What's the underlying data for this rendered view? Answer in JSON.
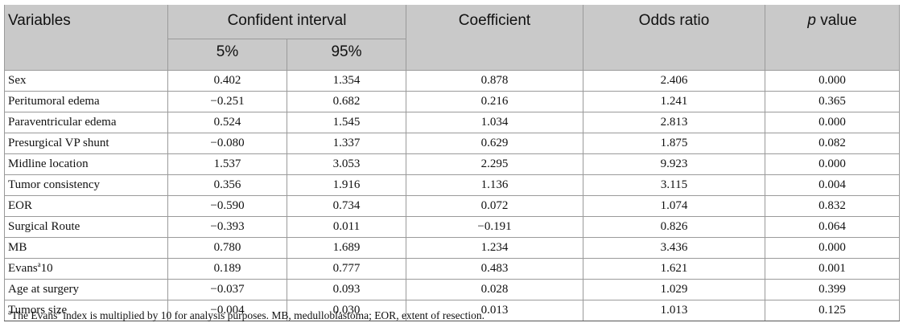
{
  "table": {
    "headers": {
      "variables": "Variables",
      "confident_interval": "Confident interval",
      "ci_low": "5%",
      "ci_high": "95%",
      "coefficient": "Coefficient",
      "odds_ratio": "Odds ratio",
      "p_italic": "p",
      "p_rest": " value"
    },
    "rows": [
      {
        "variable": "Sex",
        "ci_low": "0.402",
        "ci_high": "1.354",
        "coefficient": "0.878",
        "odds_ratio": "2.406",
        "p": "0.000"
      },
      {
        "variable": "Peritumoral edema",
        "ci_low": "−0.251",
        "ci_high": "0.682",
        "coefficient": "0.216",
        "odds_ratio": "1.241",
        "p": "0.365"
      },
      {
        "variable": "Paraventricular edema",
        "ci_low": "0.524",
        "ci_high": "1.545",
        "coefficient": "1.034",
        "odds_ratio": "2.813",
        "p": "0.000"
      },
      {
        "variable": "Presurgical VP shunt",
        "ci_low": "−0.080",
        "ci_high": "1.337",
        "coefficient": "0.629",
        "odds_ratio": "1.875",
        "p": "0.082"
      },
      {
        "variable": "Midline location",
        "ci_low": "1.537",
        "ci_high": "3.053",
        "coefficient": "2.295",
        "odds_ratio": "9.923",
        "p": "0.000"
      },
      {
        "variable": "Tumor consistency",
        "ci_low": "0.356",
        "ci_high": "1.916",
        "coefficient": "1.136",
        "odds_ratio": "3.115",
        "p": "0.004"
      },
      {
        "variable": "EOR",
        "ci_low": "−0.590",
        "ci_high": "0.734",
        "coefficient": "0.072",
        "odds_ratio": "1.074",
        "p": "0.832"
      },
      {
        "variable": "Surgical Route",
        "ci_low": "−0.393",
        "ci_high": "0.011",
        "coefficient": "−0.191",
        "odds_ratio": "0.826",
        "p": "0.064"
      },
      {
        "variable": "MB",
        "ci_low": "0.780",
        "ci_high": "1.689",
        "coefficient": "1.234",
        "odds_ratio": "3.436",
        "p": "0.000"
      },
      {
        "variable": "Evans",
        "variable_sup": "a",
        "variable_suffix": "10",
        "ci_low": "0.189",
        "ci_high": "0.777",
        "coefficient": "0.483",
        "odds_ratio": "1.621",
        "p": "0.001"
      },
      {
        "variable": "Age at surgery",
        "ci_low": "−0.037",
        "ci_high": "0.093",
        "coefficient": "0.028",
        "odds_ratio": "1.029",
        "p": "0.399"
      },
      {
        "variable": "Tumors size",
        "ci_low": "−0.004",
        "ci_high": "0.030",
        "coefficient": "0.013",
        "odds_ratio": "1.013",
        "p": "0.125"
      }
    ]
  },
  "footnote": {
    "marker": "a",
    "text": "The Evans’ index is multiplied by 10 for analysis purposes. MB, medulloblastoma; EOR, extent of resection."
  }
}
